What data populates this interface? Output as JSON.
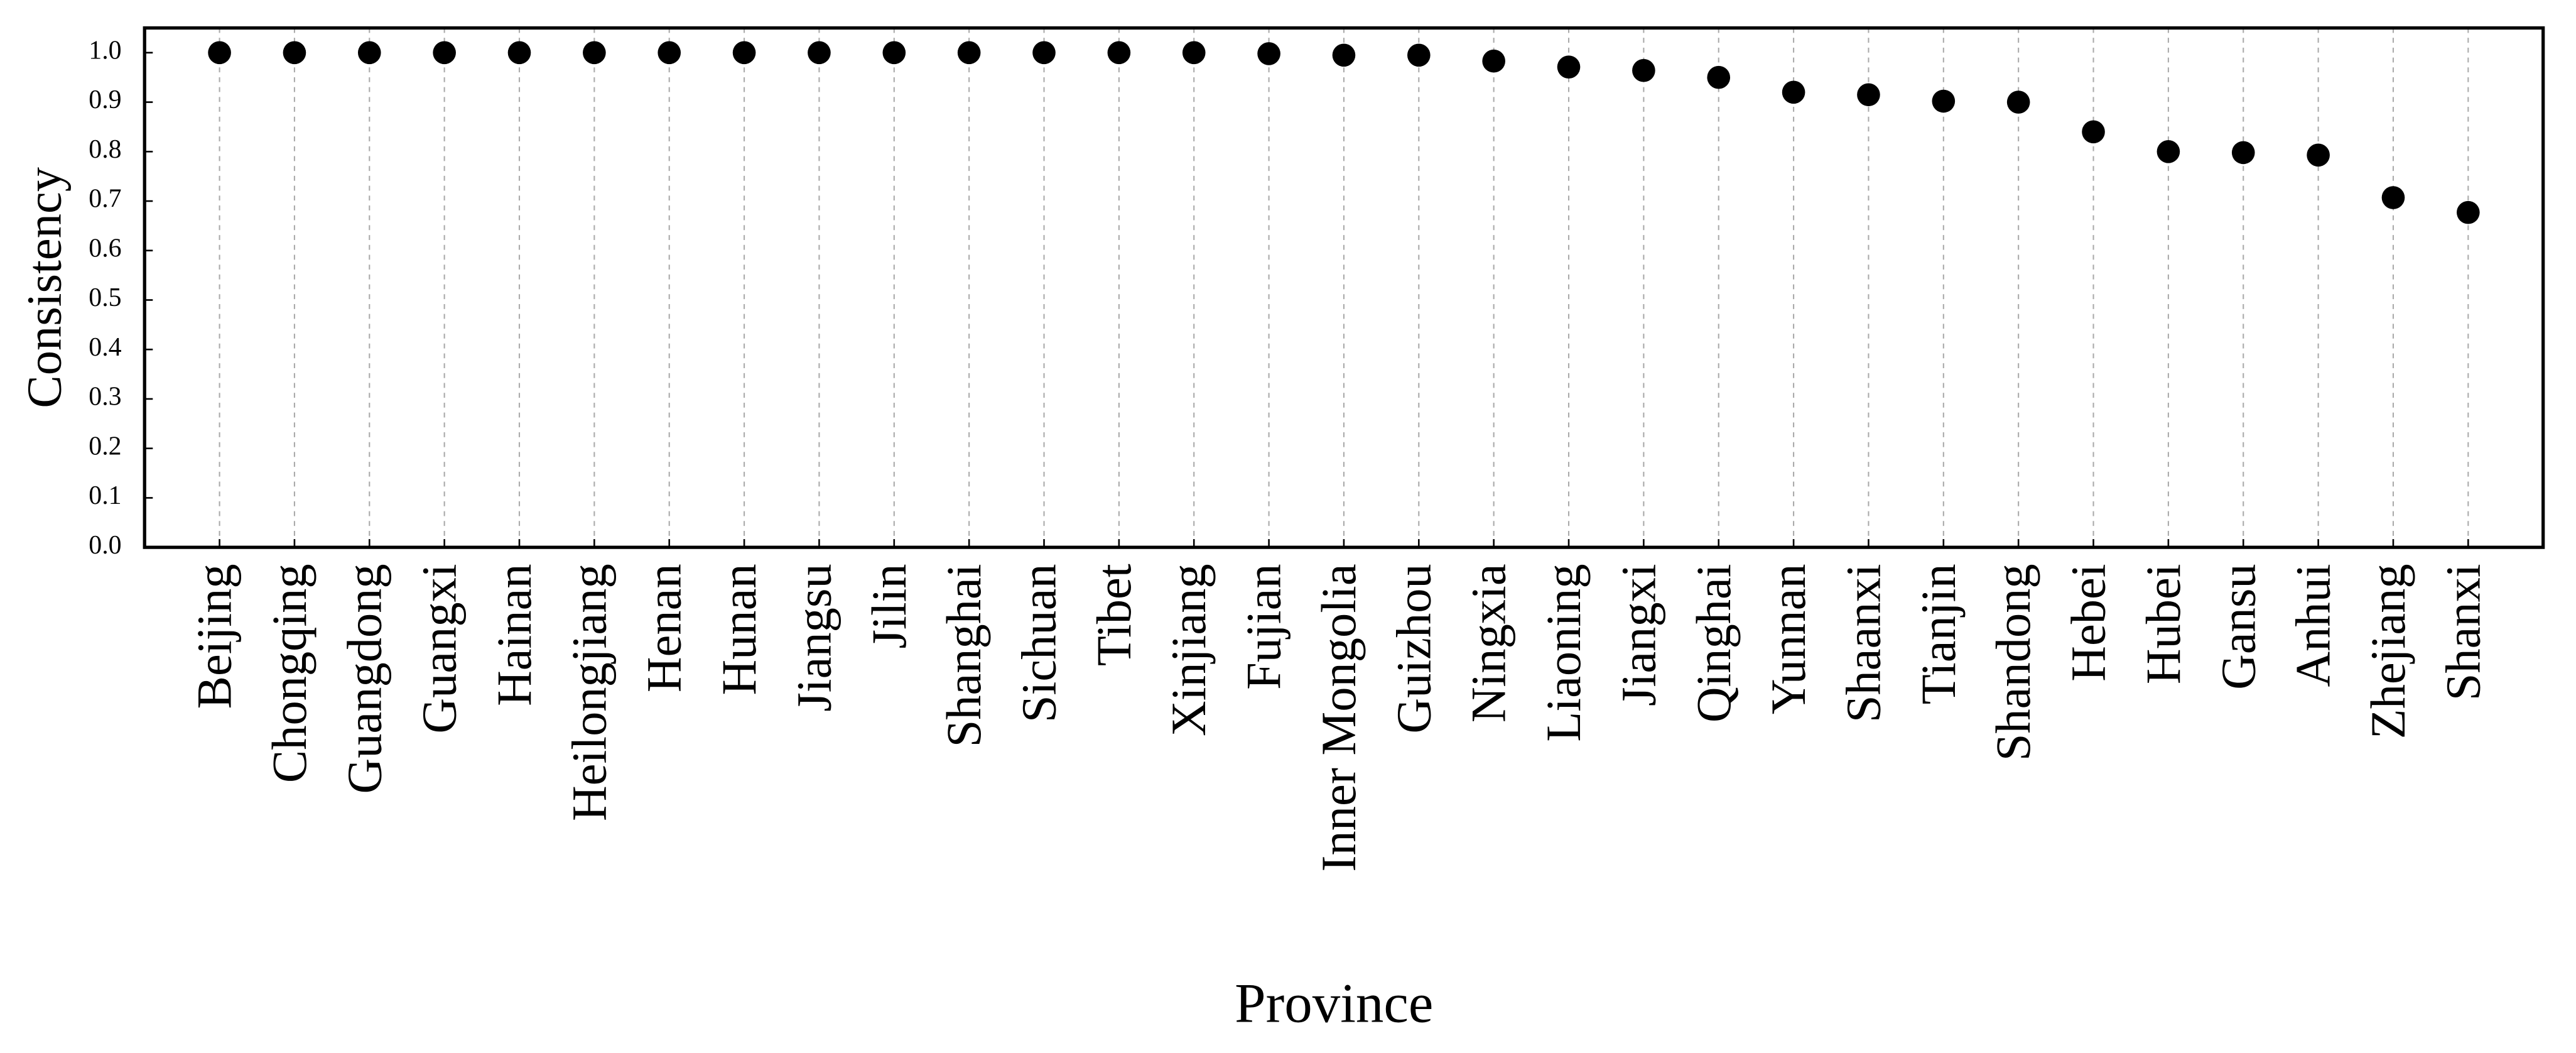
{
  "chart_data": {
    "type": "scatter",
    "x_label": "Province",
    "y_label": "Consistency",
    "categories": [
      "Beijing",
      "Chongqing",
      "Guangdong",
      "Guangxi",
      "Hainan",
      "Heilongjiang",
      "Henan",
      "Hunan",
      "Jiangsu",
      "Jilin",
      "Shanghai",
      "Sichuan",
      "Tibet",
      "Xinjiang",
      "Fujian",
      "Inner Mongolia",
      "Guizhou",
      "Ningxia",
      "Liaoning",
      "Jiangxi",
      "Qinghai",
      "Yunnan",
      "Shaanxi",
      "Tianjin",
      "Shandong",
      "Hebei",
      "Hubei",
      "Gansu",
      "Anhui",
      "Zhejiang",
      "Shanxi"
    ],
    "values": [
      1.0,
      1.0,
      1.0,
      1.0,
      1.0,
      1.0,
      1.0,
      1.0,
      1.0,
      1.0,
      1.0,
      1.0,
      1.0,
      1.0,
      0.998,
      0.995,
      0.995,
      0.983,
      0.971,
      0.964,
      0.95,
      0.92,
      0.915,
      0.902,
      0.9,
      0.84,
      0.8,
      0.798,
      0.793,
      0.707,
      0.677
    ],
    "color": "#000000",
    "ylim": [
      0,
      1.05
    ],
    "yticks": [
      {
        "value": 0,
        "label": "0.0"
      },
      0.1,
      0.2,
      0.3,
      0.4,
      0.5,
      0.6,
      0.7,
      0.8,
      0.9,
      {
        "value": 1,
        "label": "1.0"
      }
    ],
    "grid": true
  }
}
